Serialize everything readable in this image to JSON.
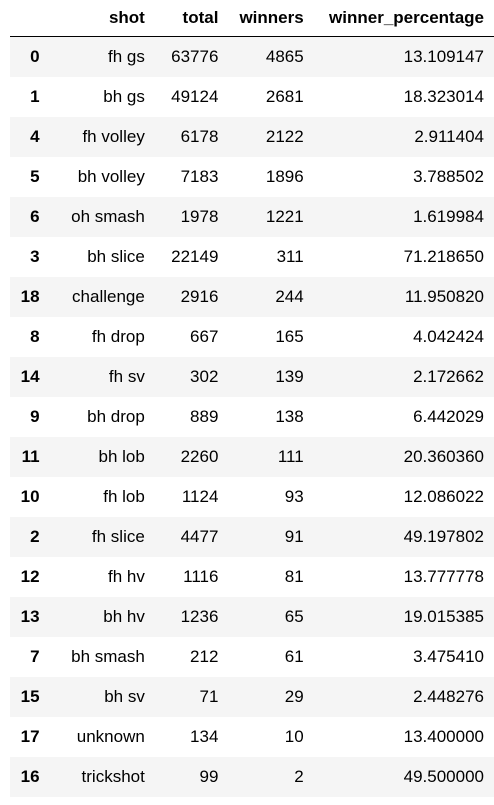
{
  "table": {
    "index_header": "",
    "columns": [
      "shot",
      "total",
      "winners",
      "winner_percentage"
    ],
    "rows": [
      {
        "index": "0",
        "shot": "fh gs",
        "total": "63776",
        "winners": "4865",
        "winner_percentage": "13.109147"
      },
      {
        "index": "1",
        "shot": "bh gs",
        "total": "49124",
        "winners": "2681",
        "winner_percentage": "18.323014"
      },
      {
        "index": "4",
        "shot": "fh volley",
        "total": "6178",
        "winners": "2122",
        "winner_percentage": "2.911404"
      },
      {
        "index": "5",
        "shot": "bh volley",
        "total": "7183",
        "winners": "1896",
        "winner_percentage": "3.788502"
      },
      {
        "index": "6",
        "shot": "oh smash",
        "total": "1978",
        "winners": "1221",
        "winner_percentage": "1.619984"
      },
      {
        "index": "3",
        "shot": "bh slice",
        "total": "22149",
        "winners": "311",
        "winner_percentage": "71.218650"
      },
      {
        "index": "18",
        "shot": "challenge",
        "total": "2916",
        "winners": "244",
        "winner_percentage": "11.950820"
      },
      {
        "index": "8",
        "shot": "fh drop",
        "total": "667",
        "winners": "165",
        "winner_percentage": "4.042424"
      },
      {
        "index": "14",
        "shot": "fh sv",
        "total": "302",
        "winners": "139",
        "winner_percentage": "2.172662"
      },
      {
        "index": "9",
        "shot": "bh drop",
        "total": "889",
        "winners": "138",
        "winner_percentage": "6.442029"
      },
      {
        "index": "11",
        "shot": "bh lob",
        "total": "2260",
        "winners": "111",
        "winner_percentage": "20.360360"
      },
      {
        "index": "10",
        "shot": "fh lob",
        "total": "1124",
        "winners": "93",
        "winner_percentage": "12.086022"
      },
      {
        "index": "2",
        "shot": "fh slice",
        "total": "4477",
        "winners": "91",
        "winner_percentage": "49.197802"
      },
      {
        "index": "12",
        "shot": "fh hv",
        "total": "1116",
        "winners": "81",
        "winner_percentage": "13.777778"
      },
      {
        "index": "13",
        "shot": "bh hv",
        "total": "1236",
        "winners": "65",
        "winner_percentage": "19.015385"
      },
      {
        "index": "7",
        "shot": "bh smash",
        "total": "212",
        "winners": "61",
        "winner_percentage": "3.475410"
      },
      {
        "index": "15",
        "shot": "bh sv",
        "total": "71",
        "winners": "29",
        "winner_percentage": "2.448276"
      },
      {
        "index": "17",
        "shot": "unknown",
        "total": "134",
        "winners": "10",
        "winner_percentage": "13.400000"
      },
      {
        "index": "16",
        "shot": "trickshot",
        "total": "99",
        "winners": "2",
        "winner_percentage": "49.500000"
      }
    ]
  },
  "colors": {
    "stripe": "#f5f5f5",
    "background": "#ffffff",
    "text": "#000000"
  }
}
